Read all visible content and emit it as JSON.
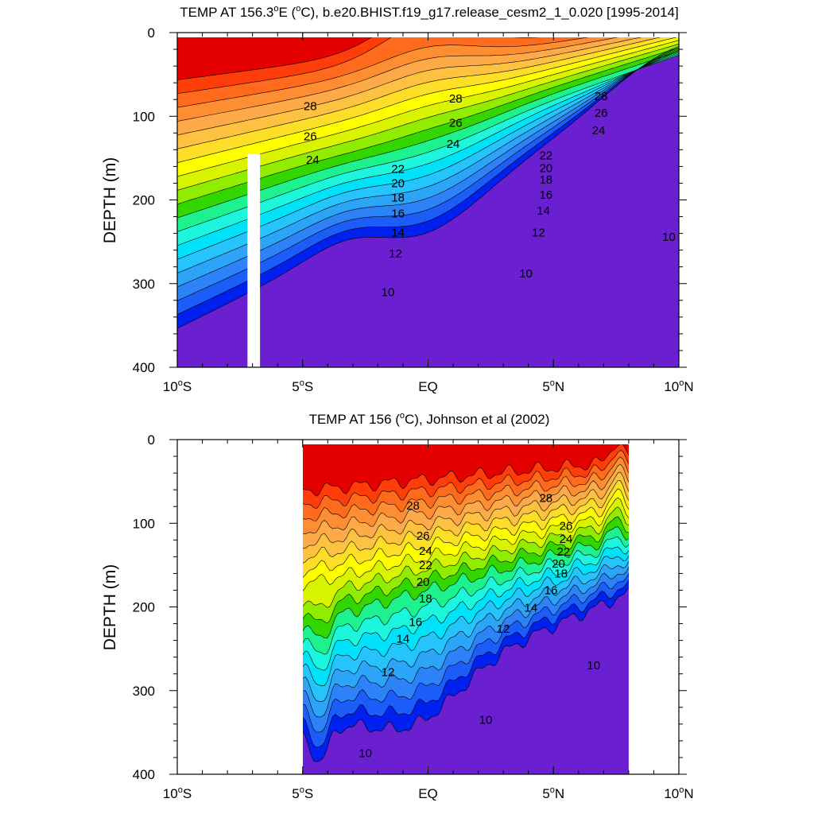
{
  "chart_data": [
    {
      "type": "contour",
      "title": "TEMP AT 156.3°E (°C), b.e20.BHIST.f19_g17.release_cesm2_1_0.020 [1995-2014]",
      "ylabel": "DEPTH (m)",
      "x_ticks": [
        "10°S",
        "5°S",
        "EQ",
        "5°N",
        "10°N"
      ],
      "x_tick_values": [
        -10,
        -5,
        0,
        5,
        10
      ],
      "y_ticks": [
        "0",
        "100",
        "200",
        "300",
        "400"
      ],
      "y_tick_values": [
        0,
        100,
        200,
        300,
        400
      ],
      "xlim": [
        -10,
        10
      ],
      "ylim": [
        0,
        400
      ],
      "y_inverted": true,
      "x_data_range": [
        -10,
        10
      ],
      "masked_column": [
        -7.2,
        -6.7,
        145,
        400
      ],
      "contour_labels": [
        {
          "text": "28",
          "x": -4.7,
          "y": 88
        },
        {
          "text": "26",
          "x": -4.7,
          "y": 124
        },
        {
          "text": "24",
          "x": -4.6,
          "y": 152
        },
        {
          "text": "28",
          "x": 1.1,
          "y": 79
        },
        {
          "text": "26",
          "x": 1.1,
          "y": 108
        },
        {
          "text": "24",
          "x": 1.0,
          "y": 133
        },
        {
          "text": "28",
          "x": 6.9,
          "y": 76
        },
        {
          "text": "26",
          "x": 6.9,
          "y": 96
        },
        {
          "text": "24",
          "x": 6.8,
          "y": 117
        },
        {
          "text": "22",
          "x": -1.2,
          "y": 163
        },
        {
          "text": "20",
          "x": -1.2,
          "y": 180
        },
        {
          "text": "18",
          "x": -1.2,
          "y": 197
        },
        {
          "text": "16",
          "x": -1.2,
          "y": 216
        },
        {
          "text": "14",
          "x": -1.2,
          "y": 239
        },
        {
          "text": "12",
          "x": -1.3,
          "y": 264
        },
        {
          "text": "10",
          "x": -1.6,
          "y": 310
        },
        {
          "text": "22",
          "x": 4.7,
          "y": 147
        },
        {
          "text": "20",
          "x": 4.7,
          "y": 162
        },
        {
          "text": "18",
          "x": 4.7,
          "y": 176
        },
        {
          "text": "16",
          "x": 4.7,
          "y": 194
        },
        {
          "text": "14",
          "x": 4.6,
          "y": 213
        },
        {
          "text": "12",
          "x": 4.4,
          "y": 239
        },
        {
          "text": "10",
          "x": 3.9,
          "y": 288
        },
        {
          "text": "10",
          "x": 9.6,
          "y": 244
        }
      ]
    },
    {
      "type": "contour",
      "title": "TEMP AT 156 (°C), Johnson et al (2002)",
      "ylabel": "DEPTH (m)",
      "x_ticks": [
        "10°S",
        "5°S",
        "EQ",
        "5°N",
        "10°N"
      ],
      "x_tick_values": [
        -10,
        -5,
        0,
        5,
        10
      ],
      "y_ticks": [
        "0",
        "100",
        "200",
        "300",
        "400"
      ],
      "y_tick_values": [
        0,
        100,
        200,
        300,
        400
      ],
      "xlim": [
        -10,
        10
      ],
      "ylim": [
        0,
        400
      ],
      "y_inverted": true,
      "x_data_range": [
        -5,
        8
      ],
      "contour_labels": [
        {
          "text": "28",
          "x": -0.6,
          "y": 79
        },
        {
          "text": "28",
          "x": 4.7,
          "y": 70
        },
        {
          "text": "26",
          "x": -0.2,
          "y": 115
        },
        {
          "text": "24",
          "x": -0.1,
          "y": 133
        },
        {
          "text": "22",
          "x": -0.1,
          "y": 150
        },
        {
          "text": "20",
          "x": -0.2,
          "y": 170
        },
        {
          "text": "18",
          "x": -0.1,
          "y": 190
        },
        {
          "text": "16",
          "x": -0.5,
          "y": 218
        },
        {
          "text": "14",
          "x": -1.0,
          "y": 238
        },
        {
          "text": "12",
          "x": -1.6,
          "y": 278
        },
        {
          "text": "10",
          "x": -2.5,
          "y": 375
        },
        {
          "text": "26",
          "x": 5.5,
          "y": 103
        },
        {
          "text": "24",
          "x": 5.5,
          "y": 119
        },
        {
          "text": "22",
          "x": 5.4,
          "y": 134
        },
        {
          "text": "20",
          "x": 5.2,
          "y": 148
        },
        {
          "text": "18",
          "x": 5.3,
          "y": 160
        },
        {
          "text": "16",
          "x": 4.9,
          "y": 180
        },
        {
          "text": "14",
          "x": 4.1,
          "y": 201
        },
        {
          "text": "12",
          "x": 3.0,
          "y": 226
        },
        {
          "text": "10",
          "x": 6.6,
          "y": 270
        },
        {
          "text": "10",
          "x": 2.3,
          "y": 335
        }
      ]
    }
  ],
  "colors": {
    "background": "#ffffff",
    "missing": "#ffffff",
    "contour_line": "#000000",
    "levels": [
      "#6a1fd0",
      "#0020f0",
      "#1c5cf8",
      "#2d82f8",
      "#2ca4f8",
      "#25c4fc",
      "#00e2fa",
      "#1cf6dc",
      "#1cf28e",
      "#34d600",
      "#90ec00",
      "#d8f400",
      "#fffe00",
      "#ffde27",
      "#ffc240",
      "#ffaa48",
      "#ff8e33",
      "#ff6a1c",
      "#ff3d0a",
      "#e50000"
    ]
  }
}
